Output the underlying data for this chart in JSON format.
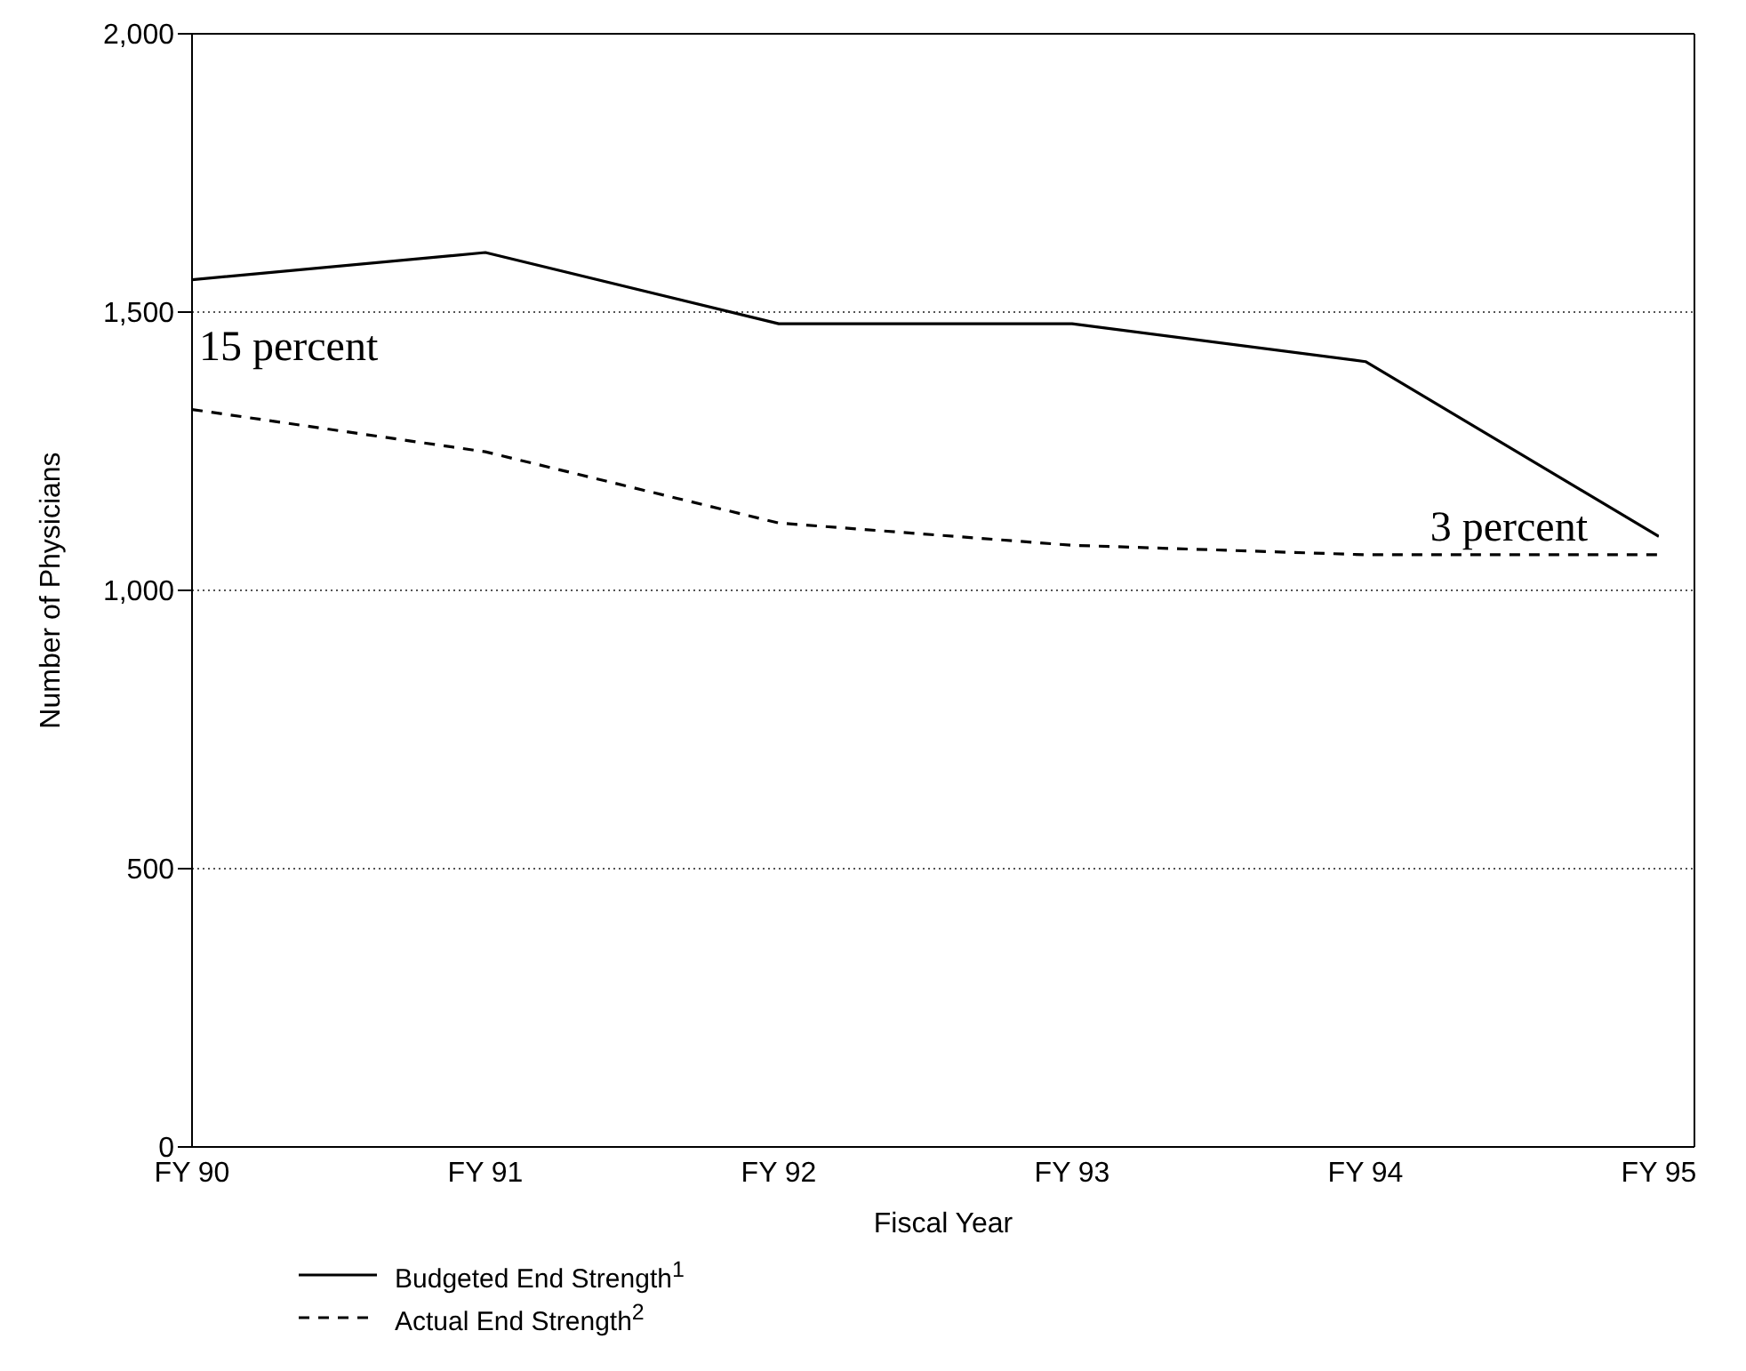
{
  "chart_data": {
    "type": "line",
    "xlabel": "Fiscal Year",
    "ylabel": "Number of Physicians",
    "categories": [
      "FY 90",
      "FY 91",
      "FY 92",
      "FY 93",
      "FY 94",
      "FY 95"
    ],
    "series": [
      {
        "name": "Budgeted End Strength$^{1}$",
        "color": "#000000",
        "line_style": "solid",
        "values": [
          1558,
          1607,
          1479,
          1479,
          1411,
          1097
        ]
      },
      {
        "name": "Actual End Strength$^{2}$",
        "color": "#000000",
        "line_style": "dashed",
        "values": [
          1325,
          1249,
          1121,
          1081,
          1064,
          1064
        ]
      }
    ],
    "ylim": [
      0,
      2000
    ],
    "yticks": [
      0,
      {
        "value": 500,
        "label": "500"
      },
      {
        "value": 1000,
        "label": "1,000"
      },
      {
        "value": 1500,
        "label": "1,500"
      },
      {
        "value": 2000,
        "label": "2,000"
      }
    ],
    "grid": "y",
    "legend": "bottom left",
    "marker": "none",
    "annotations": [
      "15 percent",
      "3 percent"
    ]
  }
}
